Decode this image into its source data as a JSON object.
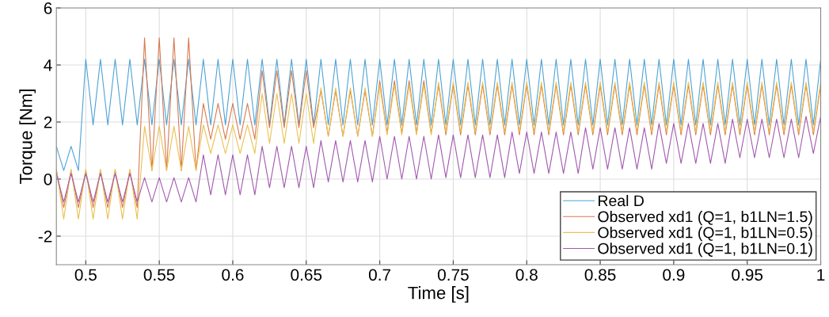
{
  "chart_data": {
    "type": "line",
    "xlabel": "Time [s]",
    "ylabel": "Torque [Nm]",
    "x": [
      0.48,
      0.485,
      0.49,
      0.495,
      0.5,
      0.505,
      0.51,
      0.515,
      0.52,
      0.525,
      0.53,
      0.535,
      0.54,
      0.545,
      0.55,
      0.555,
      0.56,
      0.565,
      0.57,
      0.575,
      0.58,
      0.585,
      0.59,
      0.595,
      0.6,
      0.605,
      0.61,
      0.615,
      0.62,
      0.625,
      0.63,
      0.635,
      0.64,
      0.645,
      0.65,
      0.655,
      0.66,
      0.665,
      0.67,
      0.675,
      0.68,
      0.685,
      0.69,
      0.695,
      0.7,
      0.705,
      0.71,
      0.715,
      0.72,
      0.725,
      0.73,
      0.735,
      0.74,
      0.745,
      0.75,
      0.755,
      0.76,
      0.765,
      0.77,
      0.775,
      0.78,
      0.785,
      0.79,
      0.795,
      0.8,
      0.805,
      0.81,
      0.815,
      0.82,
      0.825,
      0.83,
      0.835,
      0.84,
      0.845,
      0.85,
      0.855,
      0.86,
      0.865,
      0.87,
      0.875,
      0.88,
      0.885,
      0.89,
      0.895,
      0.9,
      0.905,
      0.91,
      0.915,
      0.92,
      0.925,
      0.93,
      0.935,
      0.94,
      0.945,
      0.95,
      0.955,
      0.96,
      0.965,
      0.97,
      0.975,
      0.98,
      0.985,
      0.99,
      0.995,
      1.0
    ],
    "series": [
      {
        "name": "Real D",
        "color": "#4ba3d6",
        "values": [
          1.15,
          0.3,
          1.15,
          0.3,
          4.2,
          1.9,
          4.2,
          1.9,
          4.2,
          1.9,
          4.2,
          1.9,
          4.2,
          1.9,
          4.2,
          1.9,
          4.2,
          1.9,
          4.2,
          1.9,
          4.2,
          1.9,
          4.2,
          1.9,
          4.2,
          1.9,
          4.2,
          1.9,
          4.2,
          1.9,
          4.2,
          1.9,
          4.2,
          1.9,
          4.2,
          1.9,
          4.2,
          1.9,
          4.2,
          1.9,
          4.2,
          1.9,
          4.2,
          1.9,
          4.2,
          1.9,
          4.2,
          1.9,
          4.2,
          1.9,
          4.2,
          1.9,
          4.2,
          1.9,
          4.2,
          1.9,
          4.2,
          1.9,
          4.2,
          1.9,
          4.2,
          1.9,
          4.2,
          1.9,
          4.2,
          1.9,
          4.2,
          1.9,
          4.2,
          1.9,
          4.2,
          1.9,
          4.2,
          1.9,
          4.2,
          1.9,
          4.2,
          1.9,
          4.2,
          1.9,
          4.2,
          1.9,
          4.2,
          1.9,
          4.2,
          1.9,
          4.2,
          1.9,
          4.2,
          1.9,
          4.2,
          1.9,
          4.2,
          1.9,
          4.2,
          1.9,
          4.2,
          1.9,
          4.2,
          1.9,
          4.2,
          1.9,
          4.2,
          1.9,
          4.2
        ]
      },
      {
        "name": "Observed xd1 (Q=1, b1LN=1.5)",
        "color": "#d8794f",
        "values": [
          0.3,
          -1.0,
          0.3,
          -1.0,
          0.3,
          -1.0,
          0.3,
          -1.0,
          0.3,
          -1.0,
          0.3,
          -1.0,
          4.95,
          0.3,
          4.95,
          0.3,
          4.95,
          0.3,
          4.95,
          0.3,
          2.65,
          1.4,
          2.65,
          1.4,
          2.65,
          1.4,
          2.65,
          1.4,
          3.8,
          1.8,
          3.8,
          1.8,
          3.8,
          1.8,
          3.8,
          1.8,
          3.1,
          1.5,
          3.1,
          1.5,
          3.1,
          1.5,
          3.1,
          1.5,
          3.45,
          1.6,
          3.45,
          1.6,
          3.45,
          1.6,
          3.45,
          1.6,
          3.3,
          1.55,
          3.3,
          1.55,
          3.3,
          1.55,
          3.3,
          1.55,
          3.3,
          1.55,
          3.3,
          1.55,
          3.3,
          1.55,
          3.3,
          1.55,
          3.3,
          1.55,
          3.3,
          1.55,
          3.3,
          1.55,
          3.3,
          1.55,
          3.3,
          1.55,
          3.3,
          1.55,
          3.3,
          1.55,
          3.3,
          1.55,
          3.3,
          1.55,
          3.3,
          1.55,
          3.3,
          1.55,
          3.3,
          1.55,
          3.3,
          1.55,
          3.3,
          1.55,
          3.3,
          1.55,
          3.3,
          1.55,
          3.3,
          1.55,
          3.3,
          1.55,
          3.3
        ]
      },
      {
        "name": "Observed xd1 (Q=1, b1LN=0.5)",
        "color": "#ebc050",
        "values": [
          0.35,
          -1.4,
          0.35,
          -1.4,
          0.35,
          -1.4,
          0.35,
          -1.4,
          0.35,
          -1.4,
          0.35,
          -1.4,
          1.85,
          0.3,
          1.85,
          0.3,
          1.85,
          0.3,
          1.85,
          0.3,
          1.9,
          0.9,
          1.9,
          0.9,
          1.9,
          0.9,
          1.9,
          0.9,
          3.0,
          1.25,
          3.0,
          1.25,
          3.0,
          1.25,
          3.0,
          1.25,
          3.2,
          1.5,
          3.2,
          1.5,
          3.2,
          1.5,
          3.2,
          1.5,
          3.3,
          1.55,
          3.3,
          1.55,
          3.3,
          1.55,
          3.3,
          1.55,
          3.4,
          1.65,
          3.4,
          1.65,
          3.4,
          1.65,
          3.4,
          1.65,
          3.4,
          1.65,
          3.4,
          1.65,
          3.4,
          1.65,
          3.4,
          1.65,
          3.4,
          1.65,
          3.4,
          1.65,
          3.4,
          1.65,
          3.4,
          1.65,
          3.4,
          1.65,
          3.4,
          1.65,
          3.4,
          1.65,
          3.4,
          1.65,
          3.4,
          1.65,
          3.4,
          1.65,
          3.4,
          1.65,
          3.4,
          1.65,
          3.4,
          1.65,
          3.4,
          1.65,
          3.4,
          1.65,
          3.4,
          1.65,
          3.4,
          1.65,
          3.4,
          1.65,
          3.4
        ]
      },
      {
        "name": "Observed xd1 (Q=1, b1LN=0.1)",
        "color": "#a15aae",
        "values": [
          0.2,
          -0.8,
          0.2,
          -0.8,
          0.2,
          -0.8,
          0.2,
          -0.8,
          0.2,
          -0.8,
          0.2,
          -0.8,
          0.05,
          -0.8,
          0.05,
          -0.8,
          0.05,
          -0.8,
          0.05,
          -0.8,
          0.85,
          -0.55,
          0.85,
          -0.55,
          0.85,
          -0.55,
          0.85,
          -0.55,
          1.15,
          -0.3,
          1.15,
          -0.3,
          1.15,
          -0.3,
          1.15,
          -0.3,
          1.35,
          -0.1,
          1.35,
          -0.1,
          1.35,
          -0.1,
          1.35,
          -0.1,
          1.5,
          0.0,
          1.5,
          0.0,
          1.5,
          0.0,
          1.5,
          0.0,
          1.55,
          0.05,
          1.55,
          0.05,
          1.55,
          0.05,
          1.55,
          0.05,
          1.55,
          0.05,
          1.65,
          0.2,
          1.65,
          0.2,
          1.65,
          0.2,
          1.65,
          0.2,
          1.65,
          0.2,
          1.8,
          0.35,
          1.8,
          0.35,
          1.8,
          0.35,
          1.8,
          0.35,
          1.8,
          0.35,
          1.95,
          0.55,
          1.95,
          0.55,
          1.95,
          0.55,
          1.95,
          0.55,
          1.95,
          0.55,
          2.1,
          0.75,
          2.1,
          0.75,
          2.1,
          0.75,
          2.1,
          0.75,
          2.1,
          0.75,
          2.2,
          0.9,
          2.2
        ]
      }
    ],
    "xlim": [
      0.48,
      1
    ],
    "xticks": [
      0.5,
      0.55,
      0.6,
      0.65,
      0.7,
      0.75,
      0.8,
      0.85,
      0.9,
      0.95,
      1
    ],
    "ylim": [
      -3,
      6
    ],
    "yticks": [
      -2,
      0,
      2,
      4,
      6
    ],
    "grid": true,
    "legend": "bottom right"
  }
}
